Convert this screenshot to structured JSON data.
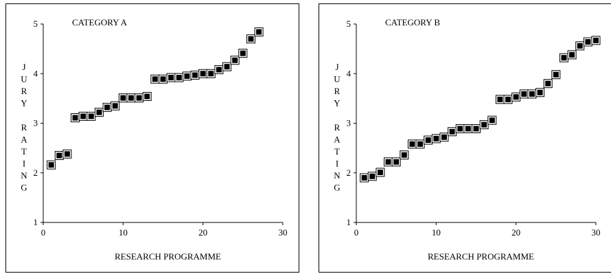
{
  "chart_data": [
    {
      "type": "scatter",
      "title": "CATEGORY A",
      "xlabel": "RESEARCH PROGRAMME",
      "ylabel": "JURY RATING",
      "xlim": [
        0,
        30
      ],
      "ylim": [
        1,
        5
      ],
      "xticks": [
        "0",
        "10",
        "20",
        "30"
      ],
      "yticks": [
        "1",
        "2",
        "3",
        "4",
        "5"
      ],
      "grid": false,
      "marker": "square",
      "marker_color": "#000000",
      "x": [
        1,
        2,
        3,
        4,
        5,
        6,
        7,
        8,
        9,
        10,
        11,
        12,
        13,
        14,
        15,
        16,
        17,
        18,
        19,
        20,
        21,
        22,
        23,
        24,
        25,
        26,
        27
      ],
      "y": [
        2.16,
        2.35,
        2.38,
        3.11,
        3.14,
        3.14,
        3.22,
        3.32,
        3.35,
        3.51,
        3.51,
        3.51,
        3.54,
        3.89,
        3.89,
        3.92,
        3.92,
        3.95,
        3.97,
        4.0,
        4.0,
        4.08,
        4.14,
        4.27,
        4.41,
        4.7,
        4.84
      ]
    },
    {
      "type": "scatter",
      "title": "CATEGORY B",
      "xlabel": "RESEARCH PROGRAMME",
      "ylabel": "JURY RATING",
      "xlim": [
        0,
        30
      ],
      "ylim": [
        1,
        5
      ],
      "xticks": [
        "0",
        "10",
        "20",
        "30"
      ],
      "yticks": [
        "1",
        "2",
        "3",
        "4",
        "5"
      ],
      "grid": false,
      "marker": "square",
      "marker_color": "#000000",
      "x": [
        1,
        2,
        3,
        4,
        5,
        6,
        7,
        8,
        9,
        10,
        11,
        12,
        13,
        14,
        15,
        16,
        17,
        18,
        19,
        20,
        21,
        22,
        23,
        24,
        25,
        26,
        27,
        28,
        29,
        30
      ],
      "y": [
        1.9,
        1.93,
        2.01,
        2.22,
        2.22,
        2.36,
        2.58,
        2.58,
        2.66,
        2.69,
        2.72,
        2.83,
        2.89,
        2.89,
        2.89,
        2.97,
        3.06,
        3.48,
        3.48,
        3.53,
        3.59,
        3.59,
        3.62,
        3.8,
        3.98,
        4.32,
        4.38,
        4.56,
        4.64,
        4.67
      ]
    }
  ]
}
